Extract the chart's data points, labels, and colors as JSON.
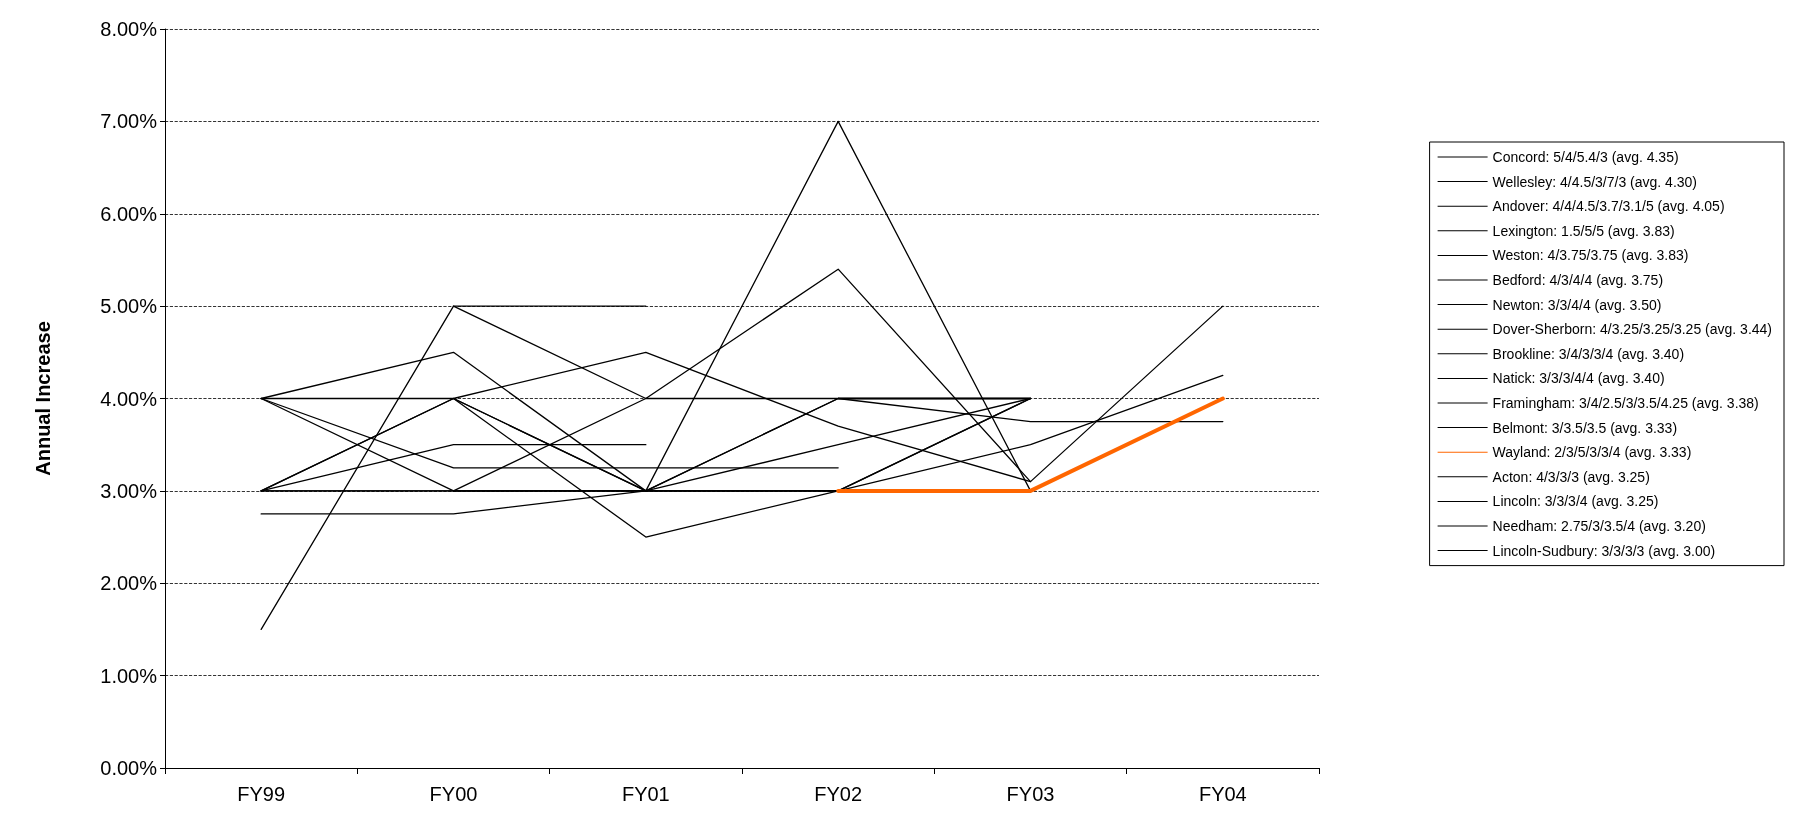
{
  "chart_data": {
    "type": "line",
    "ylabel": "Annual Increase",
    "categories": [
      "FY99",
      "FY00",
      "FY01",
      "FY02",
      "FY03",
      "FY04"
    ],
    "ylim": [
      0,
      8
    ],
    "yticks": [
      {
        "value": 0,
        "label": "0.00%"
      },
      {
        "value": 1,
        "label": "1.00%"
      },
      {
        "value": 2,
        "label": "2.00%"
      },
      {
        "value": 3,
        "label": "3.00%"
      },
      {
        "value": 4,
        "label": "4.00%"
      },
      {
        "value": 5,
        "label": "5.00%"
      },
      {
        "value": 6,
        "label": "6.00%"
      },
      {
        "value": 7,
        "label": "7.00%"
      },
      {
        "value": 8,
        "label": "8.00%"
      }
    ],
    "grid": "y",
    "legend": "right",
    "marker": "none",
    "line_style": "solid",
    "series": [
      {
        "name": "Concord: 5/4/5.4/3 (avg. 4.35)",
        "color": "#000000",
        "values": [
          null,
          5,
          4,
          5.4,
          3.1,
          null
        ]
      },
      {
        "name": "Wellesley: 4/4.5/3/7/3 (avg. 4.30)",
        "color": "#000000",
        "values": [
          4,
          4.5,
          3,
          7,
          3,
          null
        ]
      },
      {
        "name": "Andover: 4/4/4.5/3.7/3.1/5 (avg. 4.05)",
        "color": "#000000",
        "values": [
          4,
          4,
          4.5,
          3.7,
          3.1,
          5
        ]
      },
      {
        "name": "Lexington: 1.5/5/5 (avg. 3.83)",
        "color": "#000000",
        "values": [
          1.5,
          5,
          5,
          null,
          null,
          null
        ]
      },
      {
        "name": "Weston: 4/3.75/3.75 (avg. 3.83)",
        "color": "#000000",
        "values": [
          null,
          null,
          null,
          4,
          3.75,
          3.75
        ]
      },
      {
        "name": "Bedford: 4/3/4/4 (avg. 3.75)",
        "color": "#000000",
        "values": [
          null,
          4,
          3,
          4,
          4,
          null
        ]
      },
      {
        "name": "Newton: 3/3/4/4 (avg. 3.50)",
        "color": "#000000",
        "values": [
          null,
          3,
          4,
          4,
          4,
          null
        ]
      },
      {
        "name": "Dover-Sherborn: 4/3.25/3.25/3.25 (avg. 3.44)",
        "color": "#000000",
        "values": [
          4,
          3.25,
          3.25,
          3.25,
          null,
          null
        ]
      },
      {
        "name": "Brookline: 3/4/3/3/4 (avg. 3.40)",
        "color": "#000000",
        "values": [
          3,
          4,
          3,
          3,
          4,
          null
        ]
      },
      {
        "name": "Natick: 3/3/3/4/4 (avg. 3.40)",
        "color": "#000000",
        "values": [
          3,
          3,
          3,
          4,
          4,
          null
        ]
      },
      {
        "name": "Framingham: 3/4/2.5/3/3.5/4.25 (avg. 3.38)",
        "color": "#000000",
        "values": [
          3,
          4,
          2.5,
          3,
          3.5,
          4.25
        ]
      },
      {
        "name": "Belmont: 3/3.5/3.5 (avg. 3.33)",
        "color": "#000000",
        "values": [
          3,
          3.5,
          3.5,
          null,
          null,
          null
        ]
      },
      {
        "name": "Wayland: 2/3/5/3/3/4 (avg. 3.33)",
        "color": "#ff6600",
        "values": [
          null,
          null,
          null,
          3,
          3,
          4
        ]
      },
      {
        "name": "Acton: 4/3/3/3 (avg. 3.25)",
        "color": "#000000",
        "values": [
          4,
          3,
          3,
          3,
          null,
          null
        ]
      },
      {
        "name": "Lincoln: 3/3/3/4 (avg. 3.25)",
        "color": "#000000",
        "values": [
          null,
          3,
          3,
          3,
          4,
          null
        ]
      },
      {
        "name": "Needham: 2.75/3/3.5/4 (avg. 3.20)",
        "color": "#000000",
        "values": [
          2.75,
          2.75,
          3,
          3.5,
          4,
          null
        ]
      },
      {
        "name": "Lincoln-Sudbury: 3/3/3/3 (avg. 3.00)",
        "color": "#000000",
        "values": [
          3,
          3,
          3,
          3,
          null,
          null
        ]
      }
    ]
  }
}
